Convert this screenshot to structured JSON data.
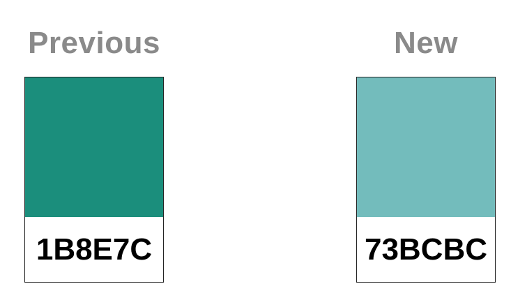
{
  "previous": {
    "label": "Previous",
    "hex": "1B8E7C",
    "color": "#1B8E7C"
  },
  "new": {
    "label": "New",
    "hex": "73BCBC",
    "color": "#73BCBC"
  }
}
